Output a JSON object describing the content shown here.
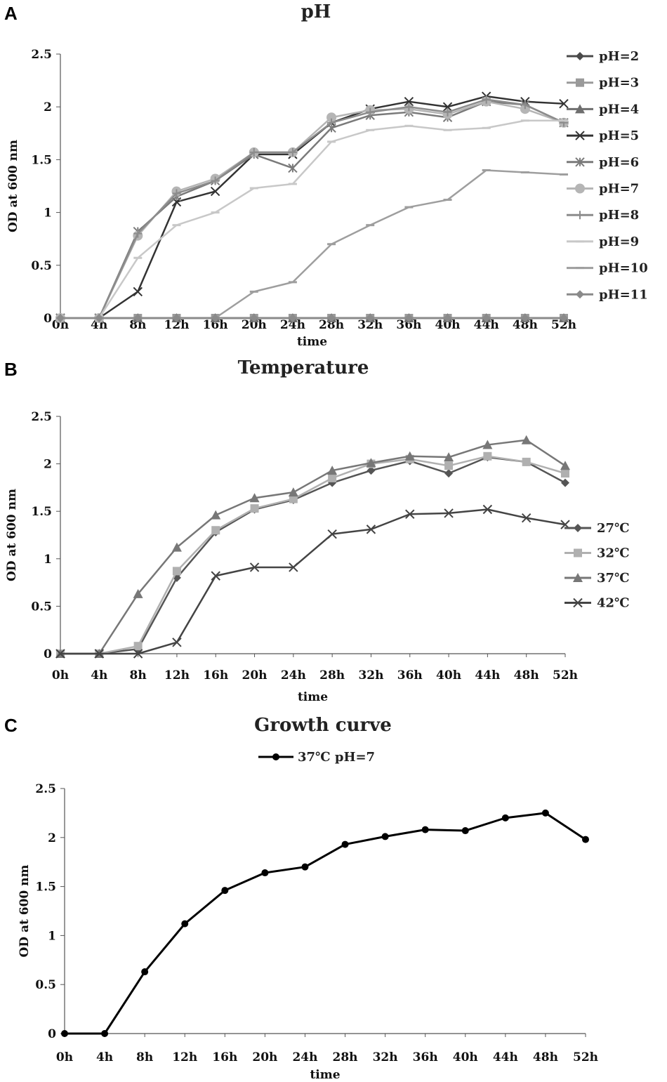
{
  "chart_data": [
    {
      "panel": "A",
      "type": "line",
      "title": "pH",
      "xlabel": "time",
      "ylabel": "OD at 600 nm",
      "ylim": [
        0,
        2.5
      ],
      "yticks": [
        "0",
        "0.5",
        "1",
        "1.5",
        "2",
        "2.5"
      ],
      "categories": [
        "0h",
        "4h",
        "8h",
        "12h",
        "16h",
        "20h",
        "24h",
        "28h",
        "32h",
        "36h",
        "40h",
        "44h",
        "48h",
        "52h"
      ],
      "legend_position": "right",
      "series": [
        {
          "name": "pH=2",
          "marker": "diamond",
          "color": "#4a4a4a",
          "values": [
            0,
            0,
            0,
            0,
            0,
            0,
            0,
            0,
            0,
            0,
            0,
            0,
            0,
            0
          ]
        },
        {
          "name": "pH=3",
          "marker": "square",
          "color": "#9a9a9a",
          "values": [
            0,
            0,
            0,
            0,
            0,
            0,
            0,
            0,
            0,
            0,
            0,
            0,
            0,
            0
          ]
        },
        {
          "name": "pH=4",
          "marker": "triangle",
          "color": "#6e6e6e",
          "values": [
            0,
            0,
            0,
            0,
            0,
            0,
            0,
            0,
            0,
            0,
            0,
            0,
            0,
            0
          ]
        },
        {
          "name": "pH=5",
          "marker": "x",
          "color": "#333333",
          "values": [
            0,
            0,
            0.25,
            1.1,
            1.2,
            1.55,
            1.55,
            1.85,
            1.98,
            2.05,
            2.0,
            2.1,
            2.05,
            2.03
          ]
        },
        {
          "name": "pH=6",
          "marker": "asterisk",
          "color": "#7a7a7a",
          "values": [
            0,
            0,
            0.82,
            1.15,
            1.3,
            1.55,
            1.42,
            1.8,
            1.92,
            1.95,
            1.9,
            2.05,
            2.02,
            1.85
          ]
        },
        {
          "name": "pH=7",
          "marker": "circle",
          "color": "#b5b5b5",
          "values": [
            0,
            0,
            0.78,
            1.2,
            1.32,
            1.57,
            1.57,
            1.9,
            1.97,
            1.98,
            1.93,
            2.05,
            1.98,
            1.85
          ]
        },
        {
          "name": "pH=8",
          "marker": "plus",
          "color": "#8c8c8c",
          "values": [
            0,
            0,
            0.8,
            1.18,
            1.3,
            1.57,
            1.57,
            1.85,
            1.95,
            2.0,
            1.95,
            2.07,
            2.02,
            1.85
          ]
        },
        {
          "name": "pH=9",
          "marker": "dash",
          "color": "#c8c8c8",
          "values": [
            0,
            0,
            0.57,
            0.88,
            1.0,
            1.23,
            1.27,
            1.67,
            1.78,
            1.82,
            1.78,
            1.8,
            1.87,
            1.87
          ]
        },
        {
          "name": "pH=10",
          "marker": "dash",
          "color": "#9e9e9e",
          "values": [
            0,
            0,
            0,
            0,
            0,
            0.25,
            0.34,
            0.7,
            0.88,
            1.05,
            1.12,
            1.4,
            1.38,
            1.36
          ]
        },
        {
          "name": "pH=11",
          "marker": "diamond",
          "color": "#8a8a8a",
          "values": [
            0,
            0,
            0,
            0,
            0,
            0,
            0,
            0,
            0,
            0,
            0,
            0,
            0,
            0
          ]
        }
      ]
    },
    {
      "panel": "B",
      "type": "line",
      "title": "Temperature",
      "xlabel": "time",
      "ylabel": "OD at 600 nm",
      "ylim": [
        0,
        2.5
      ],
      "yticks": [
        "0",
        "0.5",
        "1",
        "1.5",
        "2",
        "2.5"
      ],
      "categories": [
        "0h",
        "4h",
        "8h",
        "12h",
        "16h",
        "20h",
        "24h",
        "28h",
        "32h",
        "36h",
        "40h",
        "44h",
        "48h",
        "52h"
      ],
      "legend_position": "right",
      "series": [
        {
          "name": "27℃",
          "marker": "diamond",
          "color": "#555555",
          "values": [
            0,
            0,
            0.05,
            0.8,
            1.28,
            1.52,
            1.62,
            1.8,
            1.93,
            2.03,
            1.9,
            2.07,
            2.02,
            1.8
          ]
        },
        {
          "name": "32℃",
          "marker": "square",
          "color": "#b0b0b0",
          "values": [
            0,
            0,
            0.08,
            0.87,
            1.3,
            1.53,
            1.63,
            1.85,
            2.0,
            2.05,
            1.98,
            2.08,
            2.02,
            1.9
          ]
        },
        {
          "name": "37℃",
          "marker": "triangle",
          "color": "#777777",
          "values": [
            0,
            0,
            0.63,
            1.12,
            1.46,
            1.64,
            1.7,
            1.93,
            2.01,
            2.08,
            2.07,
            2.2,
            2.25,
            1.98
          ]
        },
        {
          "name": "42℃",
          "marker": "x",
          "color": "#444444",
          "values": [
            0,
            0,
            0,
            0.12,
            0.82,
            0.91,
            0.91,
            1.26,
            1.31,
            1.47,
            1.48,
            1.52,
            1.43,
            1.36
          ]
        }
      ]
    },
    {
      "panel": "C",
      "type": "line",
      "title": "Growth curve",
      "xlabel": "time",
      "ylabel": "OD at 600 nm",
      "ylim": [
        0,
        2.5
      ],
      "yticks": [
        "0",
        "0.5",
        "1",
        "1.5",
        "2",
        "2.5"
      ],
      "categories": [
        "0h",
        "4h",
        "8h",
        "12h",
        "16h",
        "20h",
        "24h",
        "28h",
        "32h",
        "36h",
        "40h",
        "44h",
        "48h",
        "52h"
      ],
      "legend_position": "top",
      "series": [
        {
          "name": "37℃ pH=7",
          "marker": "dot",
          "color": "#000000",
          "values": [
            0,
            0,
            0.63,
            1.12,
            1.46,
            1.64,
            1.7,
            1.93,
            2.01,
            2.08,
            2.07,
            2.2,
            2.25,
            1.98
          ]
        }
      ]
    }
  ]
}
